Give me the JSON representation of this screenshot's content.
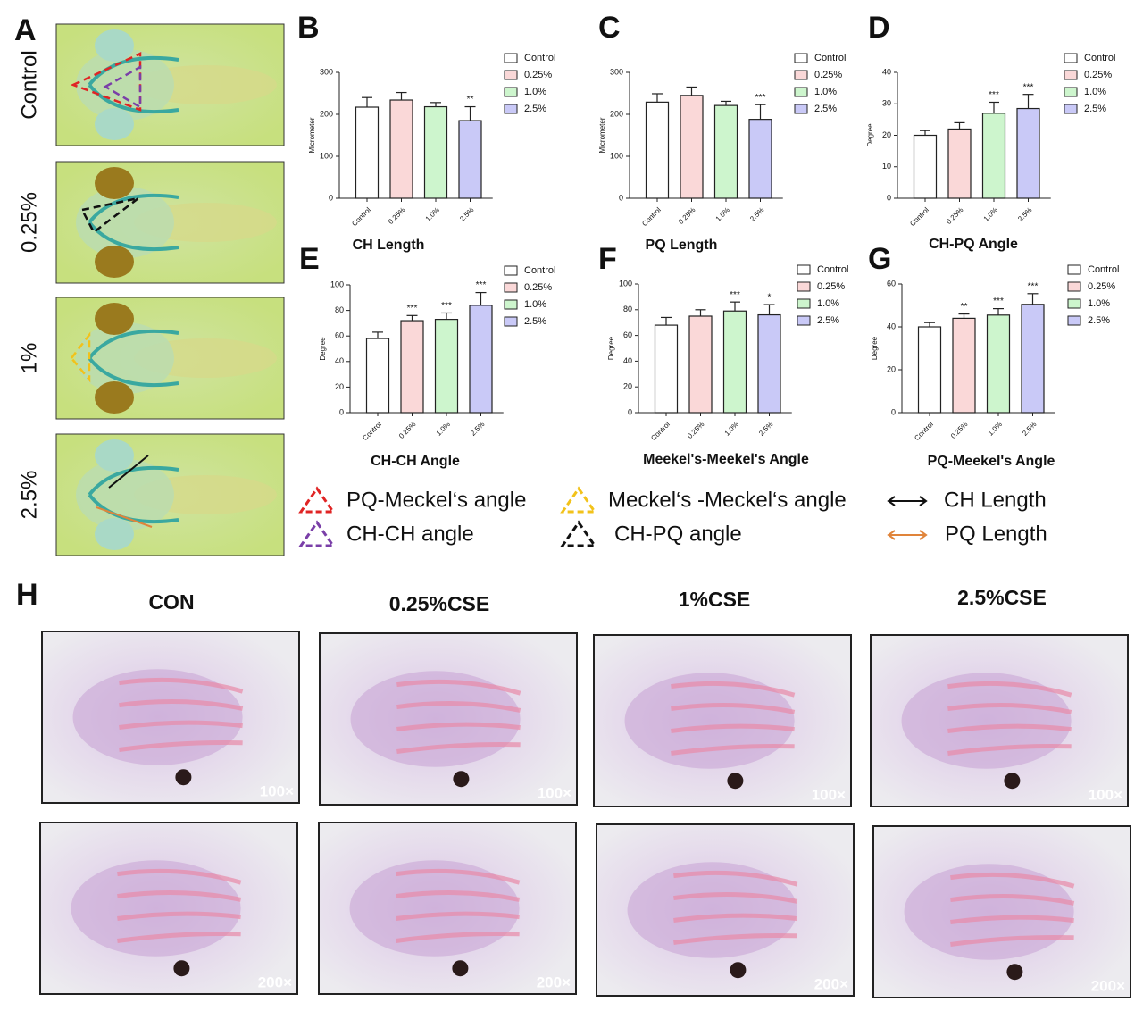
{
  "panel_a": {
    "label": "A",
    "rows": [
      "Control",
      "0.25%",
      "1%",
      "2.5%"
    ]
  },
  "chart_data": [
    {
      "type": "bar",
      "panel": "B",
      "title": "CH Length",
      "ylabel": "Micrometer",
      "categories": [
        "Control",
        "0.25%",
        "1.0%",
        "2.5%"
      ],
      "values": [
        217,
        234,
        218,
        185
      ],
      "errors": [
        23,
        18,
        10,
        33
      ],
      "annotations": [
        null,
        null,
        null,
        "**"
      ],
      "colors": [
        "#ffffff",
        "#fad8d8",
        "#cdf5cd",
        "#c9c9f7"
      ],
      "ylim": [
        0,
        300
      ],
      "yticks": [
        0,
        100,
        200,
        300
      ]
    },
    {
      "type": "bar",
      "panel": "C",
      "title": "PQ Length",
      "ylabel": "Micrometer",
      "categories": [
        "Control",
        "0.25%",
        "1.0%",
        "2.5%"
      ],
      "values": [
        229,
        245,
        221,
        188
      ],
      "errors": [
        20,
        20,
        10,
        35
      ],
      "annotations": [
        null,
        null,
        null,
        "***"
      ],
      "colors": [
        "#ffffff",
        "#fad8d8",
        "#cdf5cd",
        "#c9c9f7"
      ],
      "ylim": [
        0,
        300
      ],
      "yticks": [
        0,
        100,
        200,
        300
      ]
    },
    {
      "type": "bar",
      "panel": "D",
      "title": "CH-PQ Angle",
      "ylabel": "Degree",
      "categories": [
        "Control",
        "0.25%",
        "1.0%",
        "2.5%"
      ],
      "values": [
        20,
        22,
        27,
        28.5
      ],
      "errors": [
        1.5,
        2,
        3.5,
        4.5
      ],
      "annotations": [
        null,
        null,
        "***",
        "***"
      ],
      "colors": [
        "#ffffff",
        "#fad8d8",
        "#cdf5cd",
        "#c9c9f7"
      ],
      "ylim": [
        0,
        40
      ],
      "yticks": [
        0,
        10,
        20,
        30,
        40
      ]
    },
    {
      "type": "bar",
      "panel": "E",
      "title": "CH-CH Angle",
      "ylabel": "Degree",
      "categories": [
        "Control",
        "0.25%",
        "1.0%",
        "2.5%"
      ],
      "values": [
        58,
        72,
        73,
        84
      ],
      "errors": [
        5,
        4,
        5,
        10
      ],
      "annotations": [
        null,
        "***",
        "***",
        "***"
      ],
      "colors": [
        "#ffffff",
        "#fad8d8",
        "#cdf5cd",
        "#c9c9f7"
      ],
      "ylim": [
        0,
        100
      ],
      "yticks": [
        0,
        20,
        40,
        60,
        80,
        100
      ]
    },
    {
      "type": "bar",
      "panel": "F",
      "title": "Meekel's-Meekel's Angle",
      "ylabel": "Degree",
      "categories": [
        "Control",
        "0.25%",
        "1.0%",
        "2.5%"
      ],
      "values": [
        68,
        75,
        79,
        76
      ],
      "errors": [
        6,
        5,
        7,
        8
      ],
      "annotations": [
        null,
        null,
        "***",
        "*"
      ],
      "colors": [
        "#ffffff",
        "#fad8d8",
        "#cdf5cd",
        "#c9c9f7"
      ],
      "ylim": [
        0,
        100
      ],
      "yticks": [
        0,
        20,
        40,
        60,
        80,
        100
      ]
    },
    {
      "type": "bar",
      "panel": "G",
      "title": "PQ-Meekel's Angle",
      "ylabel": "Degree",
      "categories": [
        "Control",
        "0.25%",
        "1.0%",
        "2.5%"
      ],
      "values": [
        40,
        44,
        45.5,
        50.5
      ],
      "errors": [
        2,
        2,
        3,
        5
      ],
      "annotations": [
        null,
        "**",
        "***",
        "***"
      ],
      "colors": [
        "#ffffff",
        "#fad8d8",
        "#cdf5cd",
        "#c9c9f7"
      ],
      "ylim": [
        0,
        60
      ],
      "yticks": [
        0,
        20,
        40,
        60
      ]
    }
  ],
  "legend": {
    "items": [
      {
        "label": "PQ-Meckel‘s angle",
        "shape": "triangle",
        "color": "#e02424"
      },
      {
        "label": "CH-CH angle",
        "shape": "triangle",
        "color": "#7a3fa8"
      },
      {
        "label": "Meckel‘s -Meckel‘s angle",
        "shape": "triangle",
        "color": "#f2c21a"
      },
      {
        "label": "CH-PQ angle",
        "shape": "triangle",
        "color": "#111111"
      },
      {
        "label": "CH Length",
        "shape": "arrow",
        "color": "#111111"
      },
      {
        "label": "PQ Length",
        "shape": "arrow",
        "color": "#e0843a"
      }
    ]
  },
  "panel_h": {
    "label": "H",
    "columns": [
      "CON",
      "0.25%CSE",
      "1%CSE",
      "2.5%CSE"
    ],
    "magnifications": [
      [
        "100×",
        "100×",
        "100×",
        "100×"
      ],
      [
        "200×",
        "200×",
        "200×",
        "200×"
      ]
    ]
  }
}
